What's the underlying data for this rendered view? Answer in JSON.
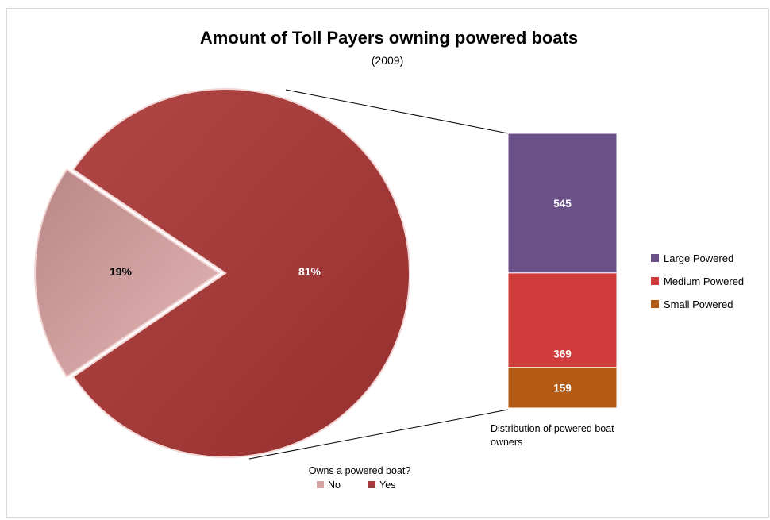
{
  "chart_data": {
    "type": "pie",
    "title": "Amount of Toll Payers owning powered boats",
    "subtitle": "(2009)",
    "pie": {
      "legend_title": "Owns a powered boat?",
      "slices": [
        {
          "label": "No",
          "value": 19,
          "value_label": "19%"
        },
        {
          "label": "Yes",
          "value": 81,
          "value_label": "81%"
        }
      ],
      "colors": {
        "No": "#d7a3a2",
        "Yes": "#a33b3a"
      },
      "legend_position": "bottom"
    },
    "breakdown": {
      "type": "stacked-bar",
      "label": "Distribution of powered boat owners",
      "series": [
        {
          "name": "Small Powered",
          "value": 159,
          "value_label": "159"
        },
        {
          "name": "Medium Powered",
          "value": 369,
          "value_label": "369"
        },
        {
          "name": "Large Powered",
          "value": 545,
          "value_label": "545"
        }
      ],
      "legend_order": [
        "Large Powered",
        "Medium Powered",
        "Small Powered"
      ],
      "colors": {
        "Large Powered": "#6b5088",
        "Medium Powered": "#d23b3b",
        "Small Powered": "#b35a14"
      },
      "legend_position": "right"
    }
  }
}
